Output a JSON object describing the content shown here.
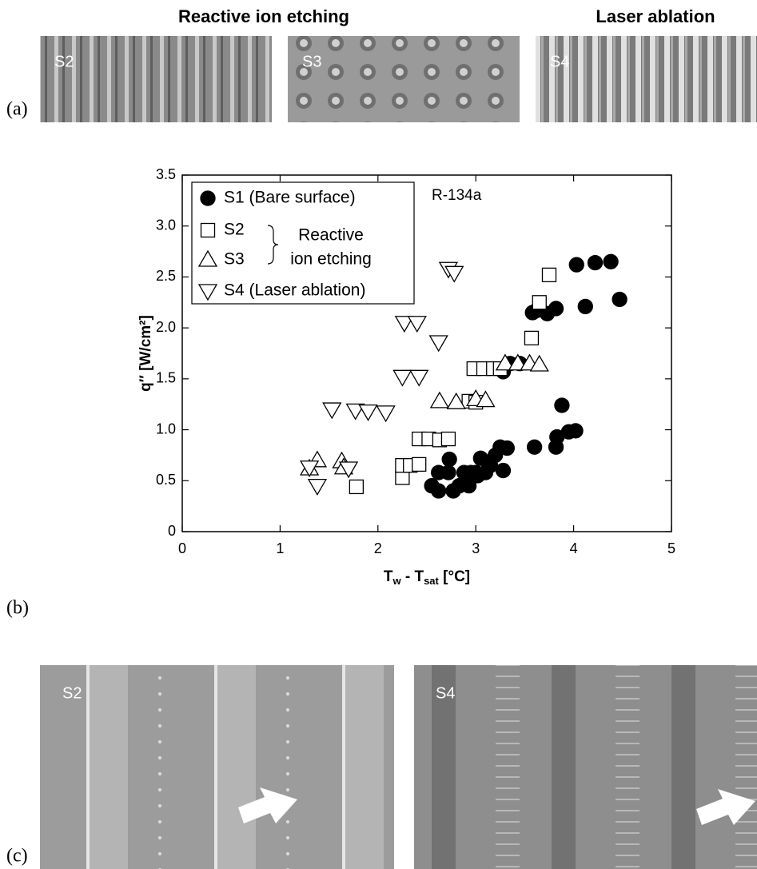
{
  "panels": {
    "a": {
      "label": "(a)",
      "headings": [
        "Reactive ion etching",
        "Laser ablation"
      ],
      "images": [
        "S2",
        "S3",
        "S4"
      ]
    },
    "b": {
      "label": "(b)"
    },
    "c": {
      "label": "(c)",
      "images": [
        "S2",
        "S4"
      ]
    }
  },
  "chart_data": {
    "type": "scatter",
    "annotation": "R-134a",
    "brace_label": [
      "Reactive",
      "ion etching"
    ],
    "xlabel": [
      "T",
      "w",
      " - T",
      "sat",
      " [°C]"
    ],
    "ylabel": "q″ [W/cm²]",
    "xlim": [
      0,
      5
    ],
    "xticks": [
      0,
      1,
      2,
      3,
      4,
      5
    ],
    "ylim": [
      0,
      3.5
    ],
    "yticks": [
      0,
      0.5,
      {
        "value": 1,
        "label": "1.0"
      },
      1.5,
      {
        "value": 2,
        "label": "2.0"
      },
      2.5,
      {
        "value": 3,
        "label": "3.0"
      },
      3.5
    ],
    "legend": "upper left",
    "series": [
      {
        "name": "S1 (Bare surface)",
        "marker": "circle-filled",
        "color": "#000000",
        "x": [
          2.55,
          2.62,
          2.62,
          2.72,
          2.73,
          2.77,
          2.83,
          2.88,
          2.93,
          2.95,
          3.0,
          3.02,
          3.05,
          3.1,
          3.15,
          3.2,
          3.25,
          3.28,
          3.32,
          3.6,
          3.82,
          3.83,
          3.88,
          3.95,
          4.02,
          3.28,
          3.35,
          3.45,
          3.58,
          3.62,
          3.73,
          3.82,
          4.03,
          4.12,
          4.22,
          4.38,
          4.47
        ],
        "values": [
          0.45,
          0.4,
          0.58,
          0.58,
          0.71,
          0.4,
          0.45,
          0.58,
          0.45,
          0.58,
          0.58,
          0.55,
          0.72,
          0.58,
          0.65,
          0.75,
          0.83,
          0.6,
          0.82,
          0.83,
          0.83,
          0.93,
          1.24,
          0.98,
          0.99,
          1.57,
          1.65,
          1.65,
          2.15,
          2.17,
          2.14,
          2.19,
          2.62,
          2.21,
          2.64,
          2.65,
          2.28
        ]
      },
      {
        "name": "S2",
        "marker": "square",
        "color": "#000000",
        "x": [
          1.78,
          2.25,
          2.25,
          2.33,
          2.42,
          2.42,
          2.52,
          2.63,
          2.72,
          2.93,
          3.0,
          2.98,
          3.08,
          3.18,
          3.25,
          3.57,
          3.65,
          3.75
        ],
        "values": [
          0.44,
          0.53,
          0.65,
          0.65,
          0.66,
          0.91,
          0.91,
          0.9,
          0.91,
          1.28,
          1.27,
          1.6,
          1.6,
          1.6,
          1.6,
          1.9,
          2.25,
          2.52
        ]
      },
      {
        "name": "S3",
        "marker": "triangle-up",
        "color": "#000000",
        "x": [
          1.3,
          1.38,
          1.63,
          1.65,
          2.63,
          2.8,
          3.0,
          3.1,
          3.3,
          3.43,
          3.55,
          3.65
        ],
        "values": [
          0.62,
          0.7,
          0.69,
          0.63,
          1.28,
          1.27,
          1.3,
          1.29,
          1.65,
          1.65,
          1.65,
          1.64
        ]
      },
      {
        "name": "S4 (Laser ablation)",
        "marker": "triangle-down",
        "color": "#000000",
        "x": [
          1.38,
          1.3,
          1.7,
          1.53,
          1.77,
          1.9,
          2.08,
          2.25,
          2.42,
          2.27,
          2.4,
          2.62,
          2.72,
          2.78
        ],
        "values": [
          0.45,
          0.63,
          0.62,
          1.2,
          1.19,
          1.18,
          1.17,
          1.52,
          1.52,
          2.05,
          2.05,
          1.86,
          2.58,
          2.54
        ]
      }
    ]
  }
}
